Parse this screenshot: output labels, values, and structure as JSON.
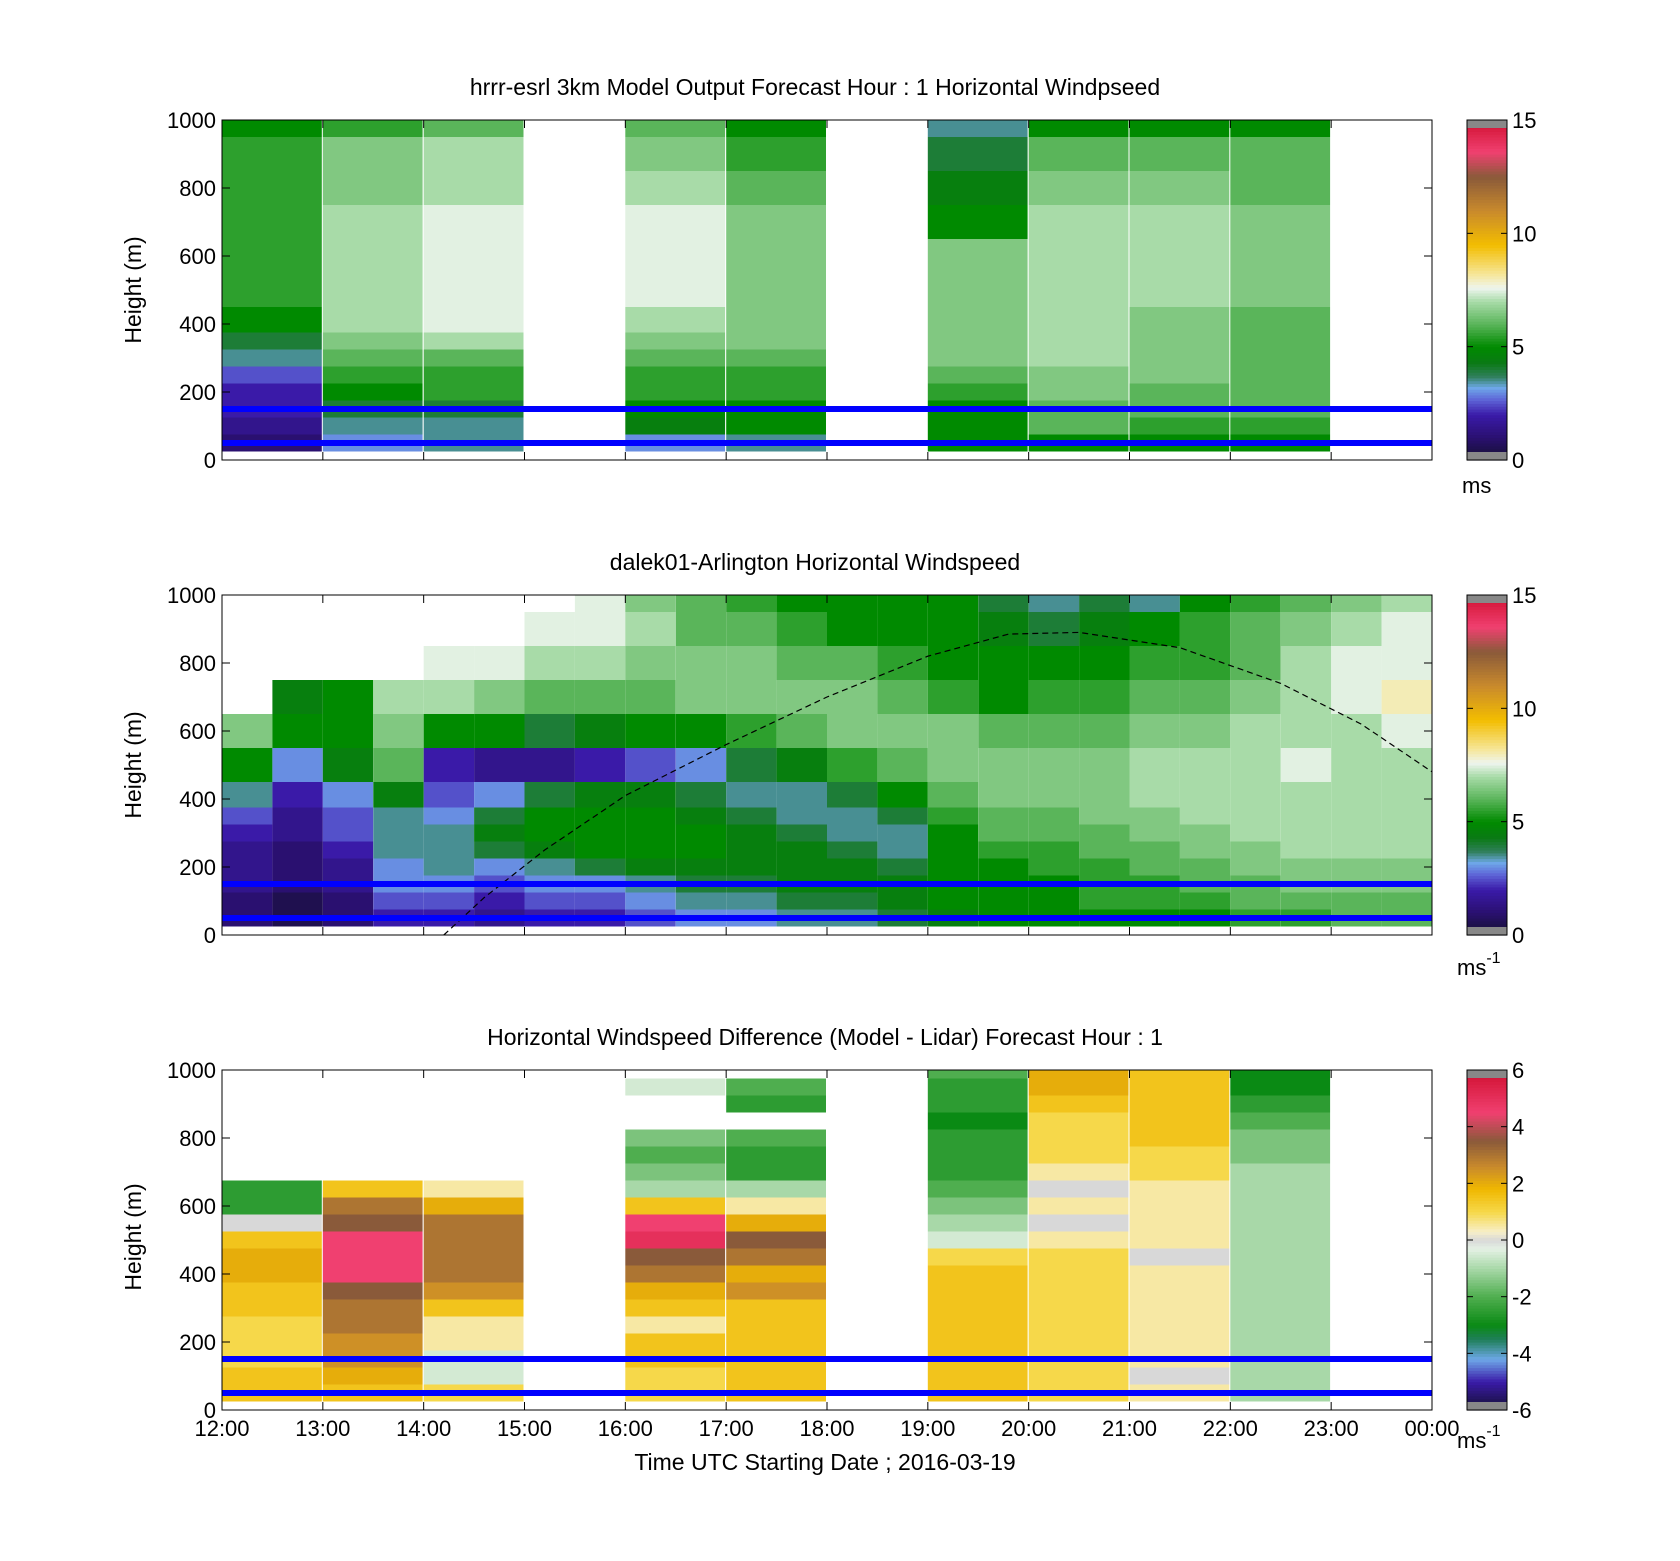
{
  "colors": {
    "ref_line": "#0000ff",
    "nan_gray": "#888888",
    "axes": "#000000"
  },
  "chart_data": [
    {
      "type": "heatmap",
      "title": "hrrr-esrl 3km Model Output   Forecast Hour : 1 Horizontal Windpseed",
      "ylabel": "Height (m)",
      "xlabel": "",
      "colorbar_unit": "ms",
      "colorbar_unit_sup": "",
      "colorbar_ticks": [
        "0",
        "5",
        "10",
        "15"
      ],
      "clim": [
        0,
        15
      ],
      "ylim": [
        0,
        1000
      ],
      "yticks": [
        "0",
        "200",
        "400",
        "600",
        "800",
        "1000"
      ],
      "xticks": [
        "12:00",
        "13:00",
        "14:00",
        "15:00",
        "16:00",
        "17:00",
        "18:00",
        "19:00",
        "20:00",
        "21:00",
        "22:00",
        "23:00",
        "00:00"
      ],
      "show_xtick_labels": false,
      "x_hours": [
        12,
        24
      ],
      "ref_lines_height_m": [
        150,
        50
      ],
      "height_levels_m": [
        50,
        100,
        150,
        200,
        250,
        300,
        350,
        400,
        500,
        600,
        700,
        800,
        900,
        1000
      ],
      "columns": [
        {
          "time": "12:00",
          "windspeed": [
            1.0,
            1.5,
            2.0,
            2.0,
            2.5,
            3.5,
            4.0,
            5.0,
            5.5,
            5.5,
            5.5,
            5.5,
            5.5,
            5.0
          ]
        },
        {
          "time": "13:00",
          "windspeed": [
            3.0,
            3.5,
            4.0,
            5.0,
            5.5,
            6.0,
            6.5,
            7.0,
            7.0,
            7.0,
            7.0,
            6.5,
            6.5,
            5.5
          ]
        },
        {
          "time": "14:00",
          "windspeed": [
            3.5,
            3.5,
            4.0,
            5.5,
            5.5,
            6.0,
            7.0,
            7.5,
            7.5,
            7.5,
            7.5,
            7.0,
            7.0,
            6.0
          ]
        },
        {
          "time": "15:00",
          "windspeed": null
        },
        {
          "time": "16:00",
          "windspeed": [
            3.0,
            4.5,
            5.0,
            5.5,
            5.5,
            6.0,
            6.5,
            7.0,
            7.5,
            7.5,
            7.5,
            7.0,
            6.5,
            6.0
          ]
        },
        {
          "time": "17:00",
          "windspeed": [
            3.5,
            5.0,
            5.0,
            5.5,
            5.5,
            6.0,
            6.5,
            6.5,
            6.5,
            6.5,
            6.5,
            6.0,
            5.5,
            5.0
          ]
        },
        {
          "time": "18:00",
          "windspeed": null
        },
        {
          "time": "19:00",
          "windspeed": [
            5.0,
            5.0,
            5.0,
            5.5,
            6.0,
            6.5,
            6.5,
            6.5,
            6.5,
            6.5,
            5.0,
            4.5,
            4.0,
            3.5
          ]
        },
        {
          "time": "20:00",
          "windspeed": [
            5.0,
            6.0,
            6.0,
            6.5,
            6.5,
            7.0,
            7.0,
            7.0,
            7.0,
            7.0,
            7.0,
            6.5,
            6.0,
            5.0
          ]
        },
        {
          "time": "21:00",
          "windspeed": [
            5.0,
            5.5,
            6.0,
            6.0,
            6.5,
            6.5,
            6.5,
            6.5,
            7.0,
            7.0,
            7.0,
            6.5,
            6.0,
            5.0
          ]
        },
        {
          "time": "22:00",
          "windspeed": [
            5.0,
            5.5,
            6.0,
            6.0,
            6.0,
            6.0,
            6.0,
            6.0,
            6.5,
            6.5,
            6.5,
            6.0,
            6.0,
            5.0
          ]
        },
        {
          "time": "23:00",
          "windspeed": null
        }
      ]
    },
    {
      "type": "heatmap",
      "title": "dalek01-Arlington  Horizontal Windspeed",
      "ylabel": "Height (m)",
      "xlabel": "",
      "colorbar_unit": "ms",
      "colorbar_unit_sup": "-1",
      "colorbar_ticks": [
        "0",
        "5",
        "10",
        "15"
      ],
      "clim": [
        0,
        15
      ],
      "ylim": [
        0,
        1000
      ],
      "yticks": [
        "0",
        "200",
        "400",
        "600",
        "800",
        "1000"
      ],
      "xticks": [
        "12:00",
        "13:00",
        "14:00",
        "15:00",
        "16:00",
        "17:00",
        "18:00",
        "19:00",
        "20:00",
        "21:00",
        "22:00",
        "23:00",
        "00:00"
      ],
      "show_xtick_labels": false,
      "x_hours": [
        12,
        24
      ],
      "ref_lines_height_m": [
        150,
        50
      ],
      "boundary_layer_curve": {
        "x_hours": [
          14.2,
          14.6,
          15.2,
          16.0,
          17.0,
          18.0,
          19.0,
          19.8,
          20.5,
          21.5,
          22.5,
          23.3,
          24.0
        ],
        "height_m": [
          0,
          110,
          250,
          410,
          560,
          700,
          820,
          885,
          890,
          845,
          740,
          620,
          480
        ]
      },
      "height_levels_m": [
        50,
        100,
        150,
        200,
        250,
        300,
        350,
        400,
        500,
        600,
        700,
        800,
        900,
        1000
      ],
      "columns": [
        {
          "time": "12:00",
          "windspeed": [
            1.0,
            1.0,
            1.5,
            1.5,
            1.5,
            2.0,
            2.5,
            3.5,
            5.0,
            6.5,
            null,
            null,
            null,
            null
          ]
        },
        {
          "time": "12:30",
          "windspeed": [
            0.5,
            0.5,
            1.0,
            1.0,
            1.0,
            1.5,
            1.5,
            2.0,
            3.0,
            5.0,
            4.5,
            null,
            null,
            null
          ]
        },
        {
          "time": "13:00",
          "windspeed": [
            1.0,
            1.0,
            1.5,
            1.5,
            2.0,
            2.5,
            2.5,
            3.0,
            4.5,
            5.0,
            5.0,
            null,
            null,
            null
          ]
        },
        {
          "time": "13:30",
          "windspeed": [
            2.0,
            2.5,
            3.0,
            3.0,
            3.5,
            3.5,
            3.5,
            4.5,
            6.0,
            6.5,
            7.0,
            null,
            null,
            null
          ]
        },
        {
          "time": "14:00",
          "windspeed": [
            2.0,
            2.5,
            3.0,
            3.5,
            3.5,
            3.5,
            3.0,
            2.5,
            2.0,
            5.0,
            7.0,
            7.5,
            null,
            null
          ]
        },
        {
          "time": "14:30",
          "windspeed": [
            1.5,
            2.0,
            2.5,
            3.0,
            4.0,
            4.5,
            4.0,
            3.0,
            1.5,
            5.0,
            6.5,
            7.5,
            null,
            null
          ]
        },
        {
          "time": "15:00",
          "windspeed": [
            2.0,
            2.5,
            3.0,
            3.5,
            4.5,
            5.0,
            5.0,
            4.0,
            1.5,
            4.0,
            6.0,
            7.0,
            7.5,
            null
          ]
        },
        {
          "time": "15:30",
          "windspeed": [
            2.0,
            2.5,
            3.0,
            4.0,
            5.0,
            5.0,
            5.0,
            4.5,
            2.0,
            4.5,
            6.0,
            7.0,
            7.5,
            7.5
          ]
        },
        {
          "time": "16:00",
          "windspeed": [
            2.5,
            3.0,
            3.5,
            4.5,
            5.0,
            5.0,
            5.0,
            4.5,
            2.5,
            5.0,
            6.0,
            6.5,
            7.0,
            6.5
          ]
        },
        {
          "time": "16:30",
          "windspeed": [
            3.0,
            3.5,
            4.0,
            4.5,
            5.0,
            5.0,
            4.5,
            4.0,
            3.0,
            5.0,
            6.5,
            6.5,
            6.0,
            6.0
          ]
        },
        {
          "time": "17:00",
          "windspeed": [
            3.0,
            3.5,
            4.0,
            4.5,
            4.5,
            4.5,
            4.0,
            3.5,
            4.0,
            5.5,
            6.5,
            6.5,
            6.0,
            5.5
          ]
        },
        {
          "time": "17:30",
          "windspeed": [
            3.5,
            4.0,
            4.5,
            4.5,
            4.5,
            4.0,
            3.5,
            3.5,
            4.5,
            6.0,
            6.5,
            6.0,
            5.5,
            5.0
          ]
        },
        {
          "time": "18:00",
          "windspeed": [
            3.5,
            4.0,
            4.5,
            4.5,
            4.0,
            3.5,
            3.5,
            4.0,
            5.5,
            6.5,
            6.5,
            6.0,
            5.0,
            5.0
          ]
        },
        {
          "time": "18:30",
          "windspeed": [
            4.0,
            4.5,
            4.5,
            4.0,
            3.5,
            3.5,
            4.0,
            5.0,
            6.0,
            6.5,
            6.0,
            5.5,
            5.0,
            5.0
          ]
        },
        {
          "time": "19:00",
          "windspeed": [
            4.5,
            5.0,
            5.0,
            5.0,
            5.0,
            5.0,
            5.5,
            6.0,
            6.5,
            6.5,
            5.5,
            5.0,
            5.0,
            5.0
          ]
        },
        {
          "time": "19:30",
          "windspeed": [
            5.0,
            5.0,
            5.0,
            5.0,
            5.5,
            6.0,
            6.0,
            6.5,
            6.5,
            6.0,
            5.0,
            5.0,
            4.5,
            4.0
          ]
        },
        {
          "time": "20:00",
          "windspeed": [
            5.0,
            5.0,
            5.0,
            5.5,
            5.5,
            6.0,
            6.0,
            6.5,
            6.5,
            6.0,
            5.5,
            5.0,
            4.0,
            3.5
          ]
        },
        {
          "time": "20:30",
          "windspeed": [
            5.0,
            5.5,
            5.5,
            5.5,
            6.0,
            6.0,
            6.5,
            6.5,
            6.5,
            6.0,
            5.5,
            5.0,
            4.5,
            4.0
          ]
        },
        {
          "time": "21:00",
          "windspeed": [
            5.0,
            5.5,
            5.5,
            6.0,
            6.0,
            6.5,
            6.5,
            7.0,
            7.0,
            6.5,
            6.0,
            5.5,
            5.0,
            3.5
          ]
        },
        {
          "time": "21:30",
          "windspeed": [
            5.0,
            5.5,
            6.0,
            6.0,
            6.5,
            6.5,
            7.0,
            7.0,
            7.0,
            6.5,
            6.0,
            5.5,
            5.5,
            5.0
          ]
        },
        {
          "time": "22:00",
          "windspeed": [
            5.5,
            6.0,
            6.0,
            6.5,
            6.5,
            7.0,
            7.0,
            7.0,
            7.0,
            7.0,
            6.5,
            6.0,
            6.0,
            5.5
          ]
        },
        {
          "time": "22:30",
          "windspeed": [
            5.5,
            6.0,
            6.5,
            6.5,
            7.0,
            7.0,
            7.0,
            7.0,
            7.5,
            7.0,
            7.0,
            7.0,
            6.5,
            6.0
          ]
        },
        {
          "time": "23:00",
          "windspeed": [
            6.0,
            6.0,
            6.5,
            6.5,
            7.0,
            7.0,
            7.0,
            7.0,
            7.0,
            7.0,
            7.5,
            7.5,
            7.0,
            6.5
          ]
        },
        {
          "time": "23:30",
          "windspeed": [
            6.0,
            6.0,
            6.5,
            6.5,
            7.0,
            7.0,
            7.0,
            7.0,
            7.0,
            7.5,
            8.0,
            7.5,
            7.5,
            7.0
          ]
        }
      ]
    },
    {
      "type": "heatmap",
      "title": "Horizontal Windspeed Difference (Model - Lidar) Forecast Hour : 1",
      "ylabel": "Height (m)",
      "xlabel": "Time UTC  Starting Date ; 2016-03-19",
      "colorbar_unit": "ms",
      "colorbar_unit_sup": "-1",
      "colorbar_ticks": [
        "-6",
        "-4",
        "-2",
        "0",
        "2",
        "4",
        "6"
      ],
      "clim": [
        -6,
        6
      ],
      "ylim": [
        0,
        1000
      ],
      "yticks": [
        "0",
        "200",
        "400",
        "600",
        "800",
        "1000"
      ],
      "xticks": [
        "12:00",
        "13:00",
        "14:00",
        "15:00",
        "16:00",
        "17:00",
        "18:00",
        "19:00",
        "20:00",
        "21:00",
        "22:00",
        "23:00",
        "00:00"
      ],
      "show_xtick_labels": true,
      "x_hours": [
        12,
        24
      ],
      "ref_lines_height_m": [
        150,
        50
      ],
      "height_levels_m": [
        50,
        100,
        150,
        200,
        250,
        300,
        350,
        400,
        450,
        500,
        550,
        600,
        650,
        700,
        750,
        800,
        850,
        900,
        950,
        1000
      ],
      "columns": [
        {
          "time": "12:00",
          "difference": [
            1.5,
            1.5,
            1.0,
            1.0,
            1.0,
            1.5,
            1.5,
            2.0,
            2.0,
            1.5,
            0.0,
            -2.5,
            -2.5,
            null,
            null,
            null,
            null,
            null,
            null,
            null
          ]
        },
        {
          "time": "13:00",
          "difference": [
            1.5,
            2.0,
            2.5,
            2.5,
            3.0,
            3.0,
            3.5,
            4.5,
            4.5,
            4.5,
            3.5,
            3.0,
            1.5,
            null,
            null,
            null,
            null,
            null,
            null,
            null
          ]
        },
        {
          "time": "14:00",
          "difference": [
            1.0,
            -0.5,
            -0.5,
            0.5,
            0.5,
            1.5,
            2.5,
            3.0,
            3.0,
            3.0,
            3.0,
            2.0,
            0.5,
            null,
            null,
            null,
            null,
            null,
            null,
            null
          ]
        },
        {
          "time": "15:00",
          "difference": null
        },
        {
          "time": "16:00",
          "difference": [
            1.0,
            1.0,
            1.5,
            1.5,
            0.5,
            1.5,
            2.0,
            3.0,
            3.5,
            5.0,
            4.5,
            1.5,
            -1.0,
            -1.5,
            -2.0,
            -1.5,
            null,
            null,
            -0.5,
            null
          ]
        },
        {
          "time": "17:00",
          "difference": [
            1.5,
            1.5,
            1.5,
            1.5,
            1.5,
            1.5,
            2.5,
            2.0,
            3.0,
            3.5,
            2.0,
            0.5,
            -1.0,
            -2.5,
            -2.5,
            -2.0,
            null,
            -2.5,
            -2.0,
            null
          ]
        },
        {
          "time": "18:00",
          "difference": null
        },
        {
          "time": "19:00",
          "difference": [
            1.5,
            1.5,
            1.5,
            1.5,
            1.5,
            1.5,
            1.5,
            1.5,
            1.0,
            -0.5,
            -1.0,
            -1.5,
            -2.0,
            -2.5,
            -2.5,
            -2.5,
            -3.0,
            -2.5,
            -2.5,
            -2.0
          ]
        },
        {
          "time": "20:00",
          "difference": [
            1.0,
            1.0,
            1.0,
            1.0,
            1.0,
            1.0,
            1.0,
            1.0,
            1.0,
            0.5,
            0.0,
            0.5,
            0.0,
            0.5,
            1.0,
            1.0,
            1.0,
            1.5,
            2.0,
            2.0
          ]
        },
        {
          "time": "21:00",
          "difference": [
            0.5,
            0.0,
            0.5,
            0.5,
            0.5,
            0.5,
            0.5,
            0.5,
            0.0,
            0.5,
            0.5,
            0.5,
            0.5,
            1.0,
            1.0,
            1.5,
            1.5,
            1.5,
            1.5,
            1.5
          ]
        },
        {
          "time": "22:00",
          "difference": [
            -1.0,
            -1.0,
            -1.0,
            -1.0,
            -1.0,
            -1.0,
            -1.0,
            -1.0,
            -1.0,
            -1.0,
            -1.0,
            -1.0,
            -1.0,
            -1.0,
            -1.5,
            -1.5,
            -2.0,
            -2.5,
            -3.0,
            -3.0
          ]
        },
        {
          "time": "23:00",
          "difference": null
        }
      ]
    }
  ]
}
